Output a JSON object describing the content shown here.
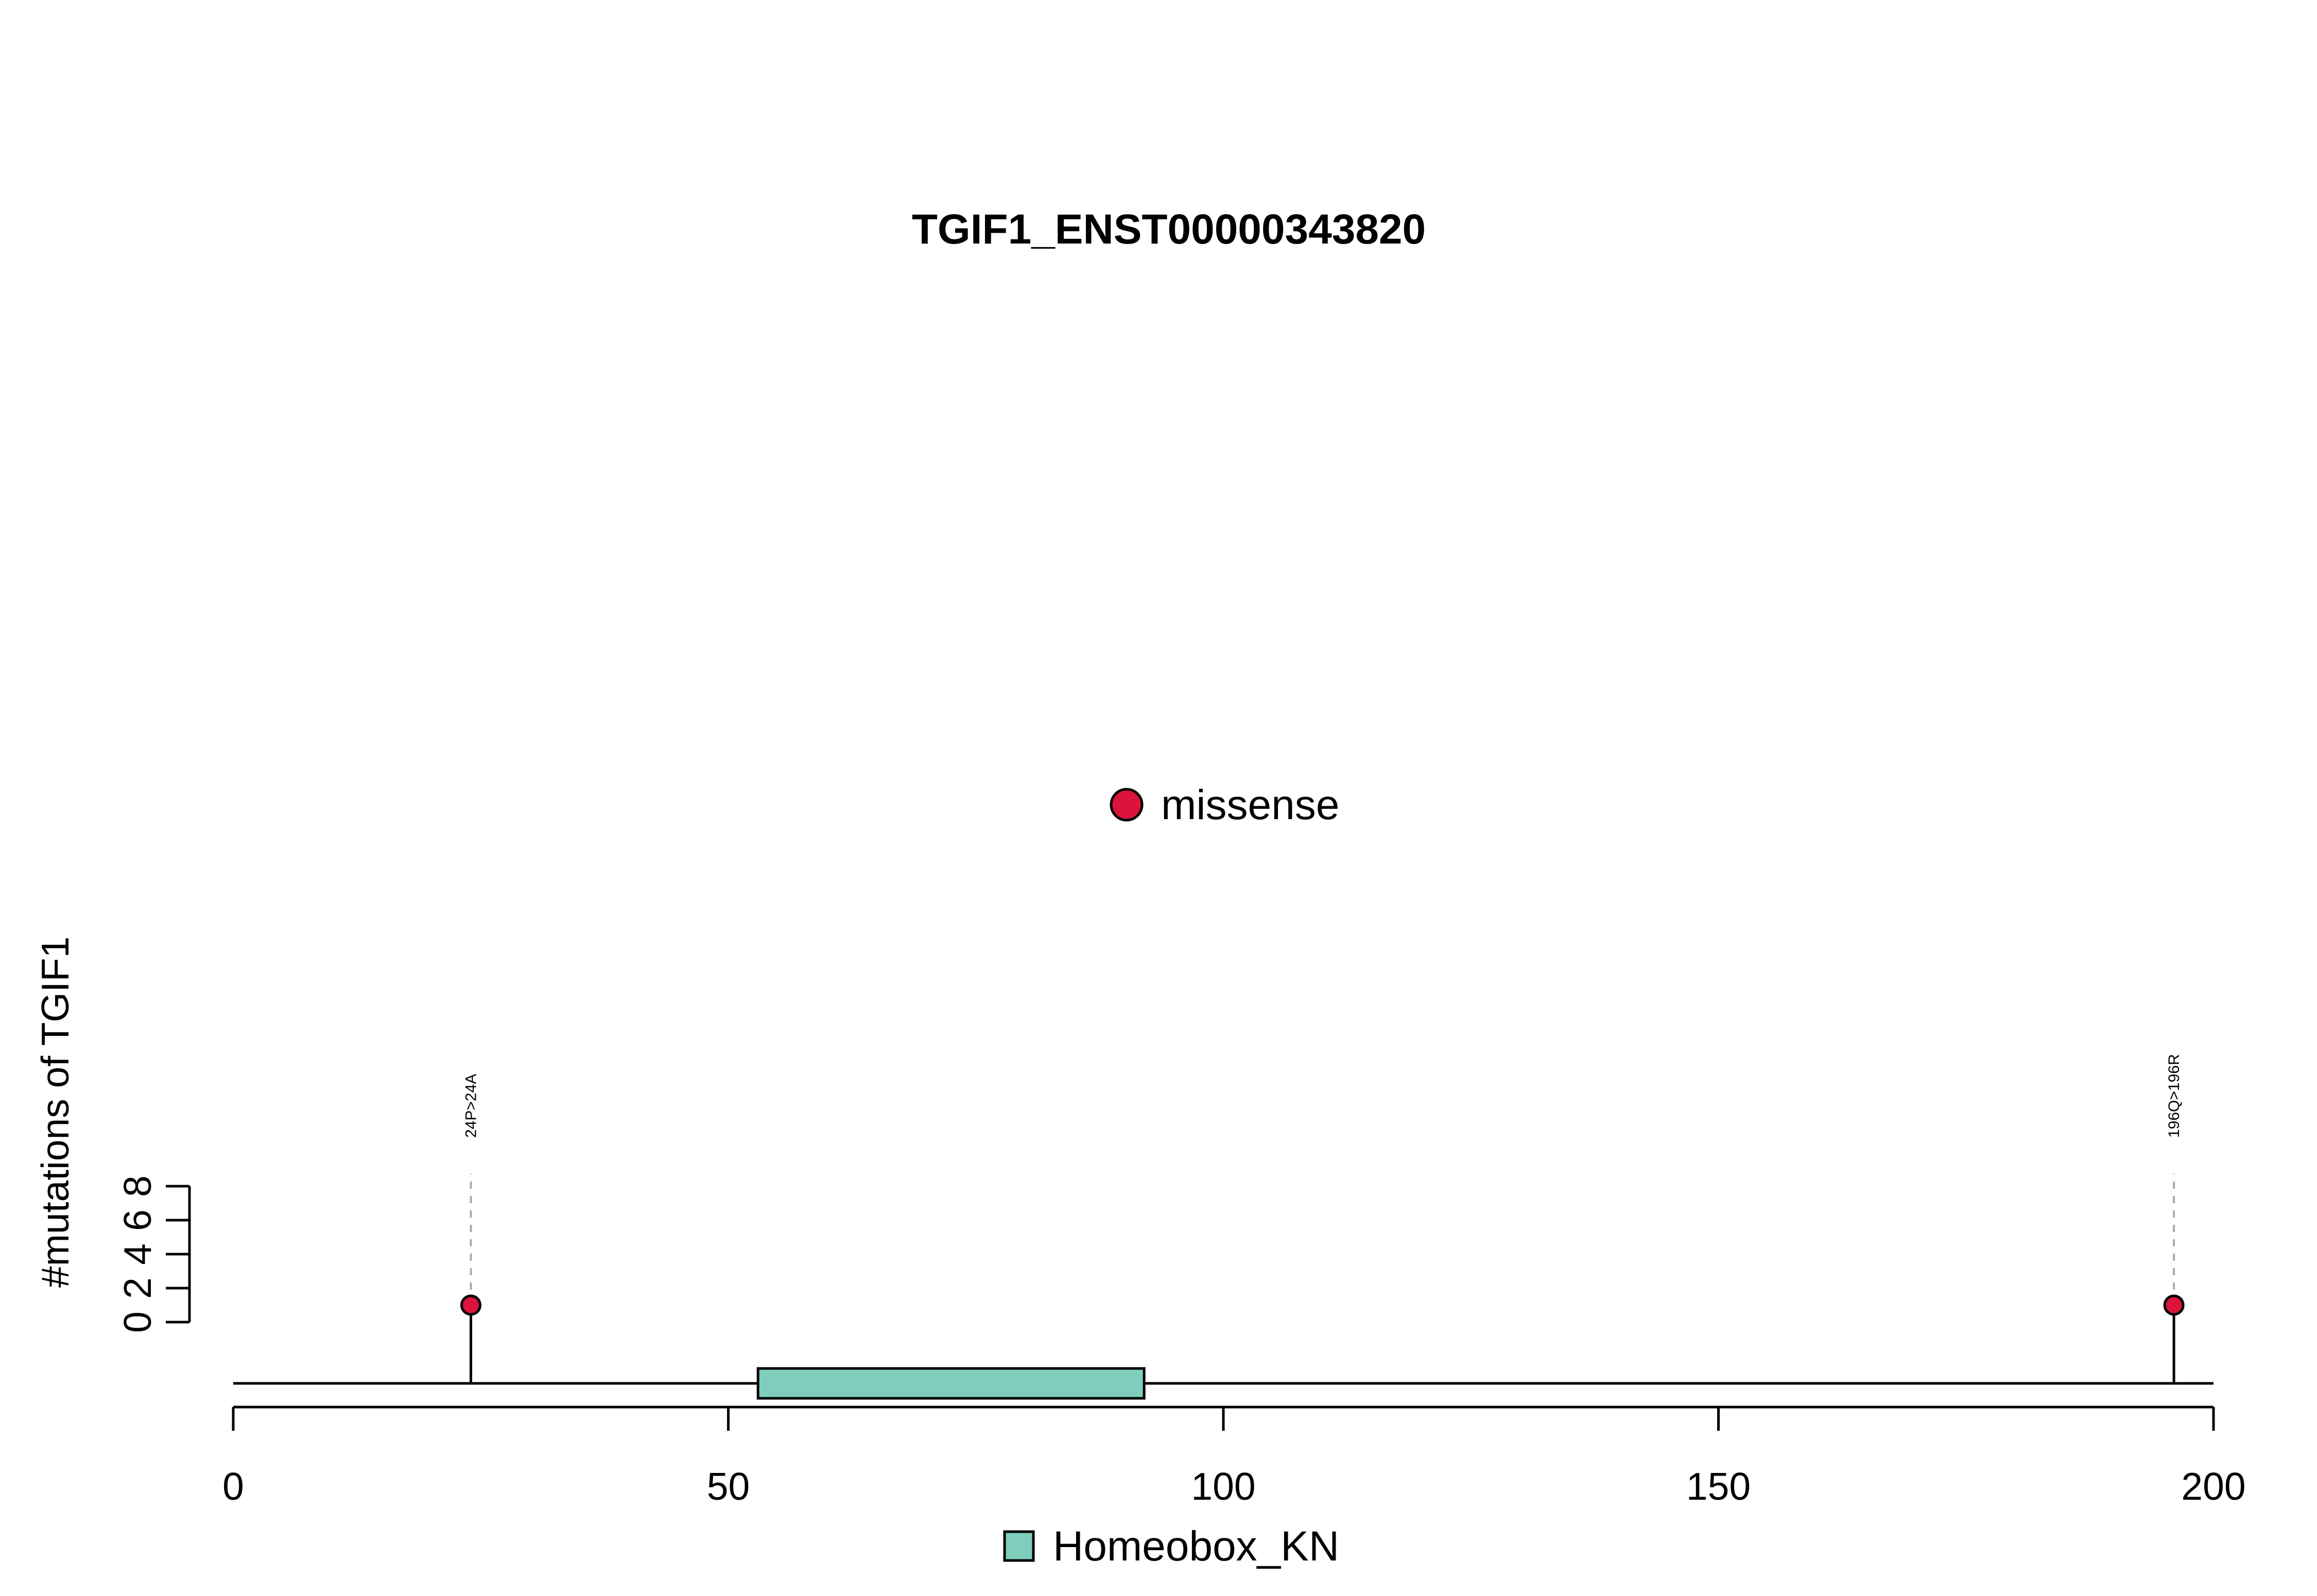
{
  "chart_data": {
    "type": "lollipop",
    "title": "TGIF1_ENST00000343820",
    "xlabel": "",
    "ylabel": "#mutations of TGIF1",
    "xlim": [
      0,
      200
    ],
    "ylim": [
      0,
      8
    ],
    "x_ticks": [
      0,
      50,
      100,
      150,
      200
    ],
    "y_ticks": [
      0,
      2,
      4,
      6,
      8
    ],
    "mutation_legend": [
      {
        "label": "missense",
        "color": "#DC143C"
      }
    ],
    "mutations": [
      {
        "position": 24,
        "count": 1,
        "label": "24P>24A",
        "type": "missense"
      },
      {
        "position": 196,
        "count": 1,
        "label": "196Q>196R",
        "type": "missense"
      }
    ],
    "domains": [
      {
        "name": "Homeobox_KN",
        "start": 53,
        "end": 92,
        "color": "#7FCDBB"
      }
    ],
    "domain_legend": [
      {
        "label": "Homeobox_KN",
        "color": "#7FCDBB"
      }
    ],
    "grid": false
  }
}
